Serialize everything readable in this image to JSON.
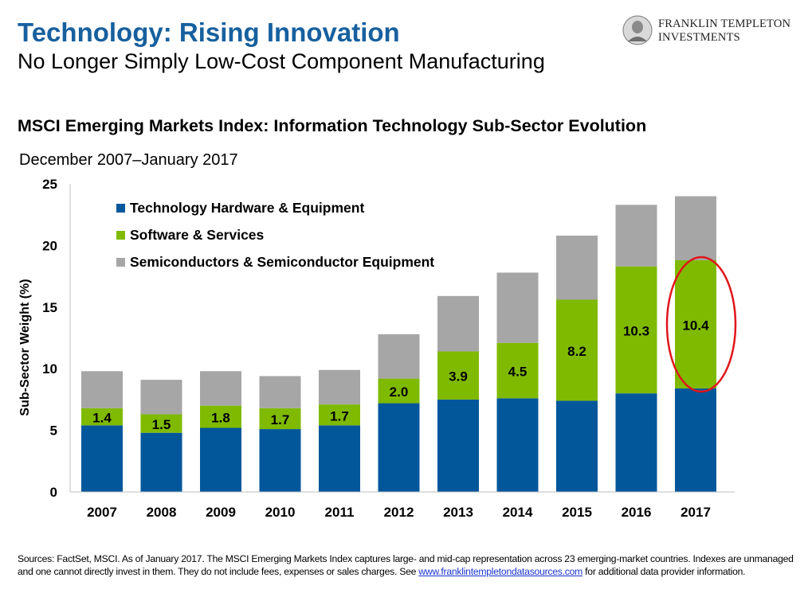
{
  "header": {
    "title": "Technology: Rising Innovation",
    "subtitle": "No Longer Simply Low-Cost Component Manufacturing"
  },
  "brand": {
    "line1": "FRANKLIN TEMPLETON",
    "line2": "INVESTMENTS",
    "logo_icon": "franklin-portrait-seal-icon"
  },
  "chart_data": {
    "type": "bar",
    "stacked": true,
    "title": "MSCI Emerging Markets Index: Information Technology Sub-Sector Evolution",
    "subtitle": "December 2007–January 2017",
    "xlabel": "",
    "ylabel": "Sub-Sector Weight (%)",
    "ylim": [
      0,
      25
    ],
    "yticks": [
      0,
      5,
      10,
      15,
      20,
      25
    ],
    "grid": false,
    "legend_position": "top-left",
    "categories": [
      "2007",
      "2008",
      "2009",
      "2010",
      "2011",
      "2012",
      "2013",
      "2014",
      "2015",
      "2016",
      "2017"
    ],
    "series": [
      {
        "name": "Technology Hardware & Equipment",
        "color": "#02579b",
        "values": [
          5.4,
          4.8,
          5.2,
          5.1,
          5.4,
          7.2,
          7.5,
          7.6,
          7.4,
          8.0,
          8.4
        ]
      },
      {
        "name": "Software & Services",
        "color": "#7fba00",
        "values": [
          1.4,
          1.5,
          1.8,
          1.7,
          1.7,
          2.0,
          3.9,
          4.5,
          8.2,
          10.3,
          10.4
        ],
        "data_labels": [
          "1.4",
          "1.5",
          "1.8",
          "1.7",
          "1.7",
          "2.0",
          "3.9",
          "4.5",
          "8.2",
          "10.3",
          "10.4"
        ]
      },
      {
        "name": "Semiconductors & Semiconductor Equipment",
        "color": "#a6a6a6",
        "values": [
          3.0,
          2.8,
          2.8,
          2.6,
          2.8,
          3.6,
          4.5,
          5.7,
          5.2,
          5.0,
          5.2
        ]
      }
    ],
    "annotation": {
      "type": "ellipse",
      "category": "2017",
      "color": "#e0161b"
    }
  },
  "footer": {
    "source_text": "Sources: FactSet, MSCI. As of January 2017. The MSCI Emerging Markets Index captures large- and mid-cap representation across 23 emerging-market countries. Indexes are unmanaged and one cannot directly invest in them. They do not include fees, expenses or sales charges. See ",
    "source_link": "www.franklintempletondatasources.com",
    "source_tail": " for additional data provider information."
  }
}
